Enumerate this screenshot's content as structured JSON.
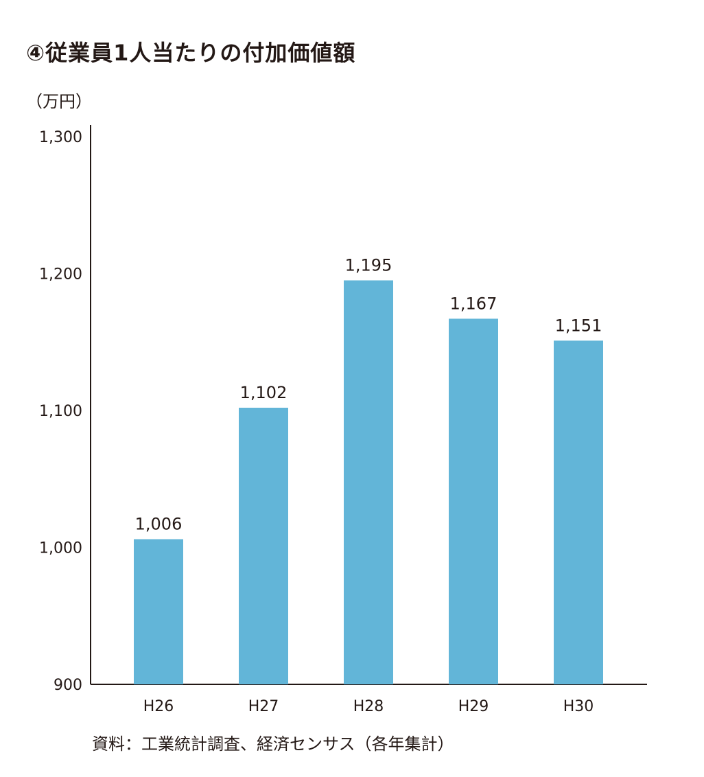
{
  "chart_data": {
    "type": "bar",
    "title": "④従業員1人当たりの付加価値額",
    "ylabel": "（万円）",
    "categories": [
      "H26",
      "H27",
      "H28",
      "H29",
      "H30"
    ],
    "values": [
      1006,
      1102,
      1195,
      1167,
      1151
    ],
    "data_labels": [
      "1,006",
      "1,102",
      "1,195",
      "1,167",
      "1,151"
    ],
    "yticks": [
      900,
      1000,
      1100,
      1200,
      1300
    ],
    "ytick_labels": [
      "900",
      "1,000",
      "1,100",
      "1,200",
      "1,300"
    ],
    "ylim": [
      900,
      1300
    ],
    "grid": false,
    "legend": "none",
    "bar_color": "#62b5d8",
    "axis_color": "#231815",
    "source": "資料：工業統計調査、経済センサス（各年集計）"
  }
}
